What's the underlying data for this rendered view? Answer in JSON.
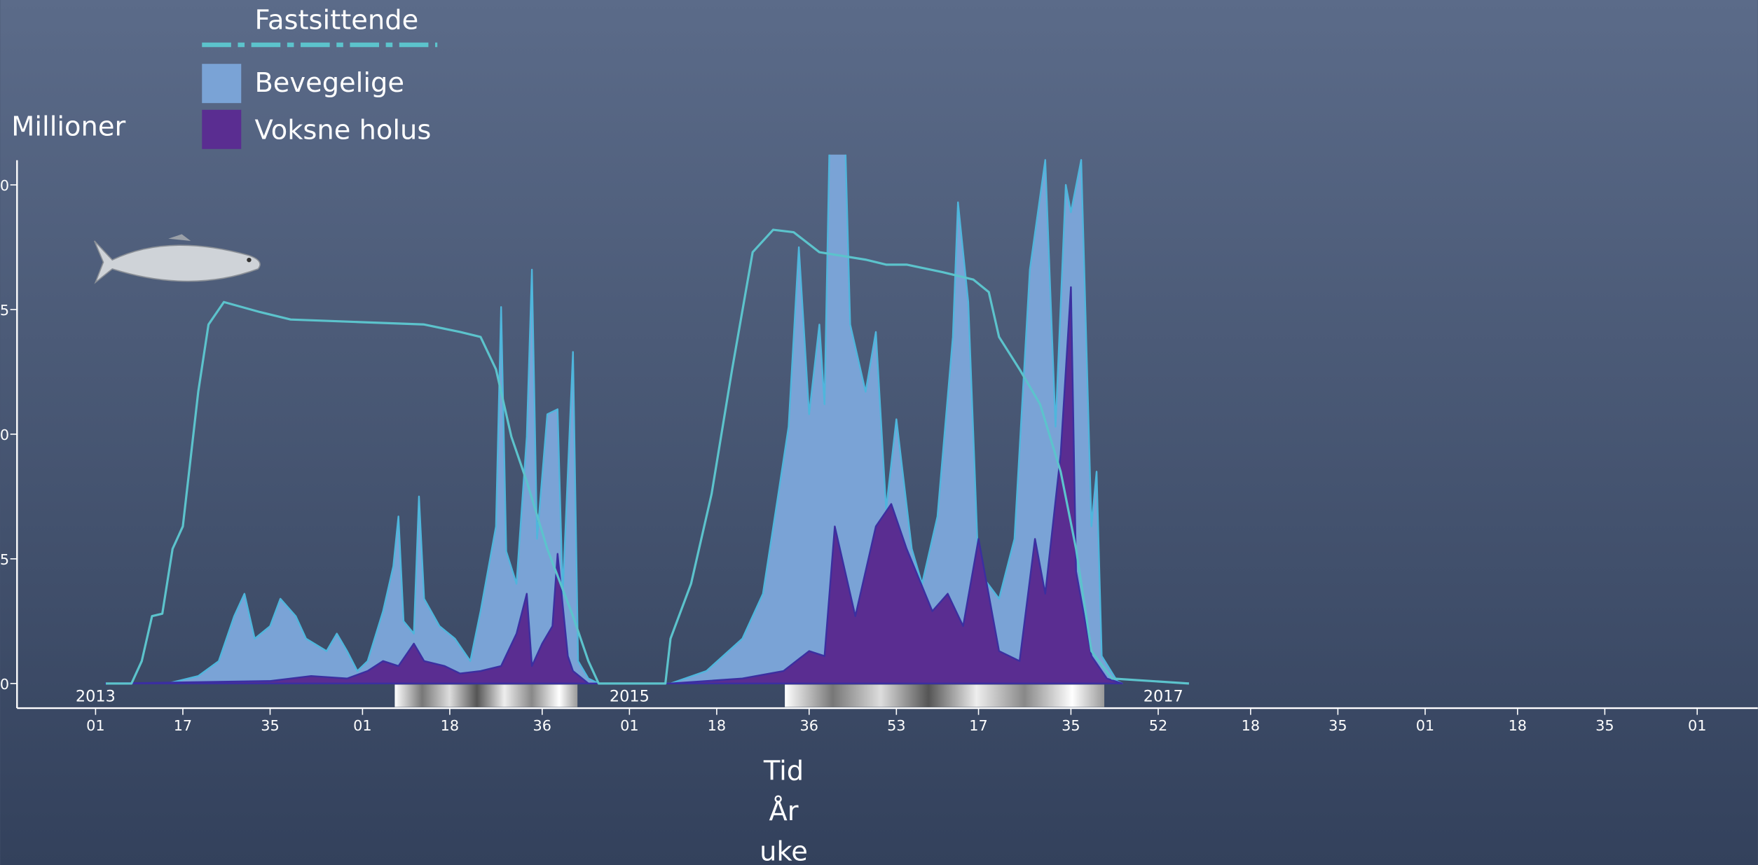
{
  "chart_data": {
    "type": "area",
    "y_label": "Millioner",
    "x_label": [
      "Tid",
      "År",
      "uke"
    ],
    "xlim": [
      -15.3,
      323.8
    ],
    "ylim": [
      0,
      21
    ],
    "yticks": [
      0,
      5,
      {
        "value": 10,
        "label": "0"
      },
      {
        "value": 15,
        "label": "5"
      },
      {
        "value": 20,
        "label": "0"
      }
    ],
    "xticks": [
      {
        "value": 0,
        "label": "01"
      },
      17,
      {
        "value": 34,
        "label": "35"
      },
      {
        "value": 52,
        "label": "01"
      },
      {
        "value": 69,
        "label": "18"
      },
      {
        "value": 87,
        "label": "36"
      },
      {
        "value": 104,
        "label": "01"
      },
      {
        "value": 121,
        "label": "18"
      },
      {
        "value": 139,
        "label": "36"
      },
      {
        "value": 156,
        "label": "53"
      },
      {
        "value": 172,
        "label": "17"
      },
      {
        "value": 190,
        "label": "35"
      },
      {
        "value": 207,
        "label": "52"
      },
      {
        "value": 225,
        "label": "18"
      },
      {
        "value": 242,
        "label": "35"
      },
      {
        "value": 259,
        "label": "01"
      },
      {
        "value": 277,
        "label": "18"
      },
      {
        "value": 294,
        "label": "35"
      },
      {
        "value": 312,
        "label": "01"
      }
    ],
    "year_labels": [
      {
        "value": 0,
        "label": "2013"
      },
      {
        "value": 104,
        "label": "2015"
      },
      {
        "value": 208,
        "label": "2017"
      }
    ],
    "series": [
      {
        "name": "Fastsittende",
        "mark": "line",
        "color": "#5cc3cc",
        "x": [
          2,
          7,
          9,
          11,
          13,
          15,
          17,
          20,
          22,
          25,
          32,
          38,
          51,
          64,
          71,
          75,
          78,
          81,
          84,
          88,
          93,
          96,
          98,
          111,
          112,
          116,
          120,
          124,
          128,
          132,
          136,
          141,
          150,
          154,
          158,
          165,
          171,
          174,
          176,
          180,
          184,
          188,
          191,
          194,
          198,
          213
        ],
        "values": [
          0,
          0,
          0.9,
          2.7,
          2.8,
          5.4,
          6.3,
          11.7,
          14.4,
          15.3,
          14.9,
          14.6,
          14.5,
          14.4,
          14.1,
          13.9,
          12.6,
          9.9,
          8.1,
          5.4,
          2.7,
          0.9,
          0,
          0,
          1.8,
          4.0,
          7.6,
          12.6,
          17.3,
          18.2,
          18.1,
          17.3,
          17.0,
          16.8,
          16.8,
          16.5,
          16.2,
          15.7,
          13.9,
          12.6,
          11.2,
          8.5,
          5.4,
          1.3,
          0.2,
          0
        ]
      },
      {
        "name": "Bevegelige",
        "mark": "area",
        "color": "#7aa3d6",
        "edge": "#4fb6dc",
        "x": [
          2,
          14,
          20,
          24,
          27,
          29,
          31,
          34,
          36,
          39,
          41,
          45,
          47,
          49,
          51,
          53,
          56,
          58,
          59,
          60,
          62,
          63,
          64,
          67,
          70,
          73,
          75,
          78,
          79,
          80,
          82,
          84,
          85,
          86,
          88,
          90,
          91,
          93,
          94,
          96,
          98,
          112,
          119,
          126,
          130,
          133,
          135,
          137,
          139,
          141,
          142,
          143,
          146,
          147,
          148,
          150,
          152,
          154,
          156,
          159,
          161,
          164,
          167,
          168,
          170,
          172,
          176,
          179,
          182,
          185,
          187,
          189,
          190,
          192,
          194,
          195,
          196,
          199,
          200
        ],
        "values": [
          0,
          0,
          0.3,
          0.9,
          2.7,
          3.6,
          1.8,
          2.3,
          3.4,
          2.7,
          1.8,
          1.3,
          2.0,
          1.3,
          0.5,
          0.9,
          2.9,
          4.7,
          6.7,
          2.5,
          2.0,
          7.5,
          3.4,
          2.3,
          1.8,
          0.9,
          2.9,
          6.3,
          15.1,
          5.3,
          4.0,
          9.9,
          16.6,
          5.8,
          10.8,
          11.0,
          3.6,
          13.3,
          0.9,
          0.2,
          0,
          0,
          0.5,
          1.8,
          3.6,
          7.6,
          10.3,
          17.5,
          10.8,
          14.4,
          11.2,
          22,
          22,
          14.4,
          13.5,
          11.7,
          14.1,
          7.0,
          10.6,
          5.4,
          4.0,
          6.7,
          13.9,
          19.3,
          15.3,
          4.5,
          3.4,
          5.8,
          16.6,
          21,
          10.3,
          20,
          18.9,
          21,
          6.3,
          8.5,
          1.1,
          0.1,
          0
        ]
      },
      {
        "name": "Voksne holus",
        "mark": "area",
        "color": "#5a2d91",
        "edge": "#3b2fa0",
        "x": [
          2,
          34,
          42,
          49,
          53,
          56,
          59,
          62,
          64,
          68,
          71,
          75,
          79,
          82,
          84,
          85,
          87,
          89,
          90,
          92,
          93,
          96,
          112,
          126,
          134,
          139,
          142,
          144,
          146,
          148,
          152,
          155,
          158,
          163,
          166,
          169,
          172,
          176,
          180,
          183,
          185,
          188,
          190,
          191,
          194,
          197,
          200
        ],
        "values": [
          0,
          0.1,
          0.3,
          0.2,
          0.5,
          0.9,
          0.7,
          1.6,
          0.9,
          0.7,
          0.4,
          0.5,
          0.7,
          2.0,
          3.6,
          0.7,
          1.6,
          2.3,
          5.2,
          1.1,
          0.5,
          0,
          0,
          0.2,
          0.5,
          1.3,
          1.1,
          6.3,
          4.5,
          2.7,
          6.3,
          7.2,
          5.4,
          2.9,
          3.6,
          2.3,
          5.8,
          1.3,
          0.9,
          5.8,
          3.6,
          9.2,
          15.9,
          4.5,
          1.1,
          0.2,
          0
        ]
      }
    ]
  }
}
